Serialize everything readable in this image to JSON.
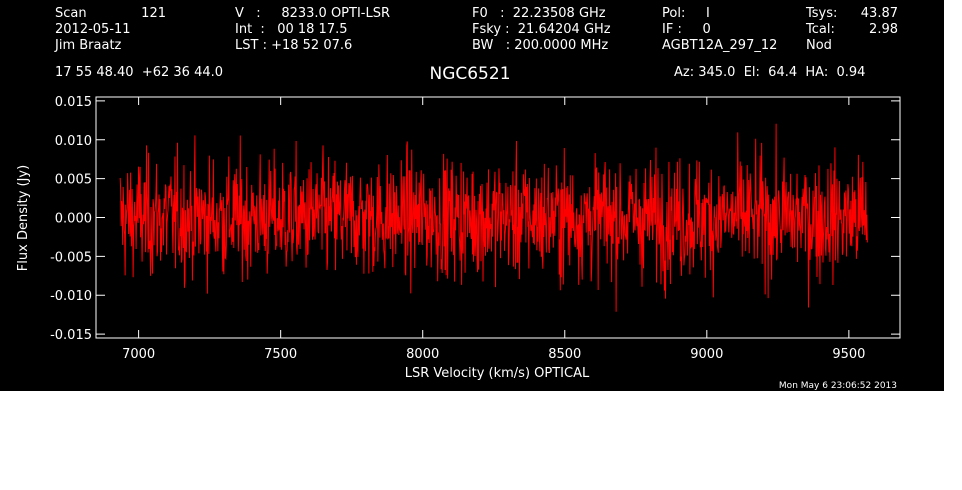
{
  "header": {
    "scan_label": "Scan",
    "scan_value": "121",
    "date": "2012-05-11",
    "observer": "Jim Braatz",
    "coords": "17 55 48.40  +62 36 44.0",
    "v_line": "V   :     8233.0 OPTI-LSR",
    "int_line": "Int  :   00 18 17.5",
    "lst_line": "LST : +18 52 07.6",
    "f0_line": "F0   :  22.23508 GHz",
    "fsky_line": "Fsky :  21.64204 GHz",
    "bw_line": "BW   : 200.0000 MHz",
    "pol_line": "Pol:     I",
    "if_line": "IF :     0",
    "project": "AGBT12A_297_12",
    "tsys_label": "Tsys:",
    "tsys_value": "43.87",
    "tcal_label": "Tcal:",
    "tcal_value": "2.98",
    "mode": "Nod",
    "source": "NGC6521",
    "azel": "Az: 345.0  El:  64.4  HA:  0.94",
    "timestamp": "Mon May  6 23:06:52 2013"
  },
  "colors": {
    "background": "#000000",
    "axes": "#ffffff",
    "series": "#ff0000"
  },
  "chart_data": {
    "type": "line",
    "title": "NGC6521",
    "xlabel": "LSR Velocity (km/s) OPTICAL",
    "ylabel": "Flux Density (Jy)",
    "xlim": [
      6850,
      9680
    ],
    "ylim": [
      -0.0155,
      0.0155
    ],
    "xticks": [
      7000,
      7500,
      8000,
      8500,
      9000,
      9500
    ],
    "xtick_labels": [
      "7000",
      "7500",
      "8000",
      "8500",
      "9000",
      "9500"
    ],
    "yticks": [
      -0.015,
      -0.01,
      -0.005,
      0.0,
      0.005,
      0.01,
      0.015
    ],
    "ytick_labels": [
      "-0.015",
      "-0.010",
      "-0.005",
      "0.000",
      "0.005",
      "0.010",
      "0.015"
    ],
    "grid": false,
    "legend": "none",
    "series": [
      {
        "x_range": [
          6935,
          9565
        ],
        "n_points": 1500,
        "mean": 0.0,
        "std": 0.0045,
        "min": -0.0125,
        "max": 0.0125
      }
    ]
  }
}
